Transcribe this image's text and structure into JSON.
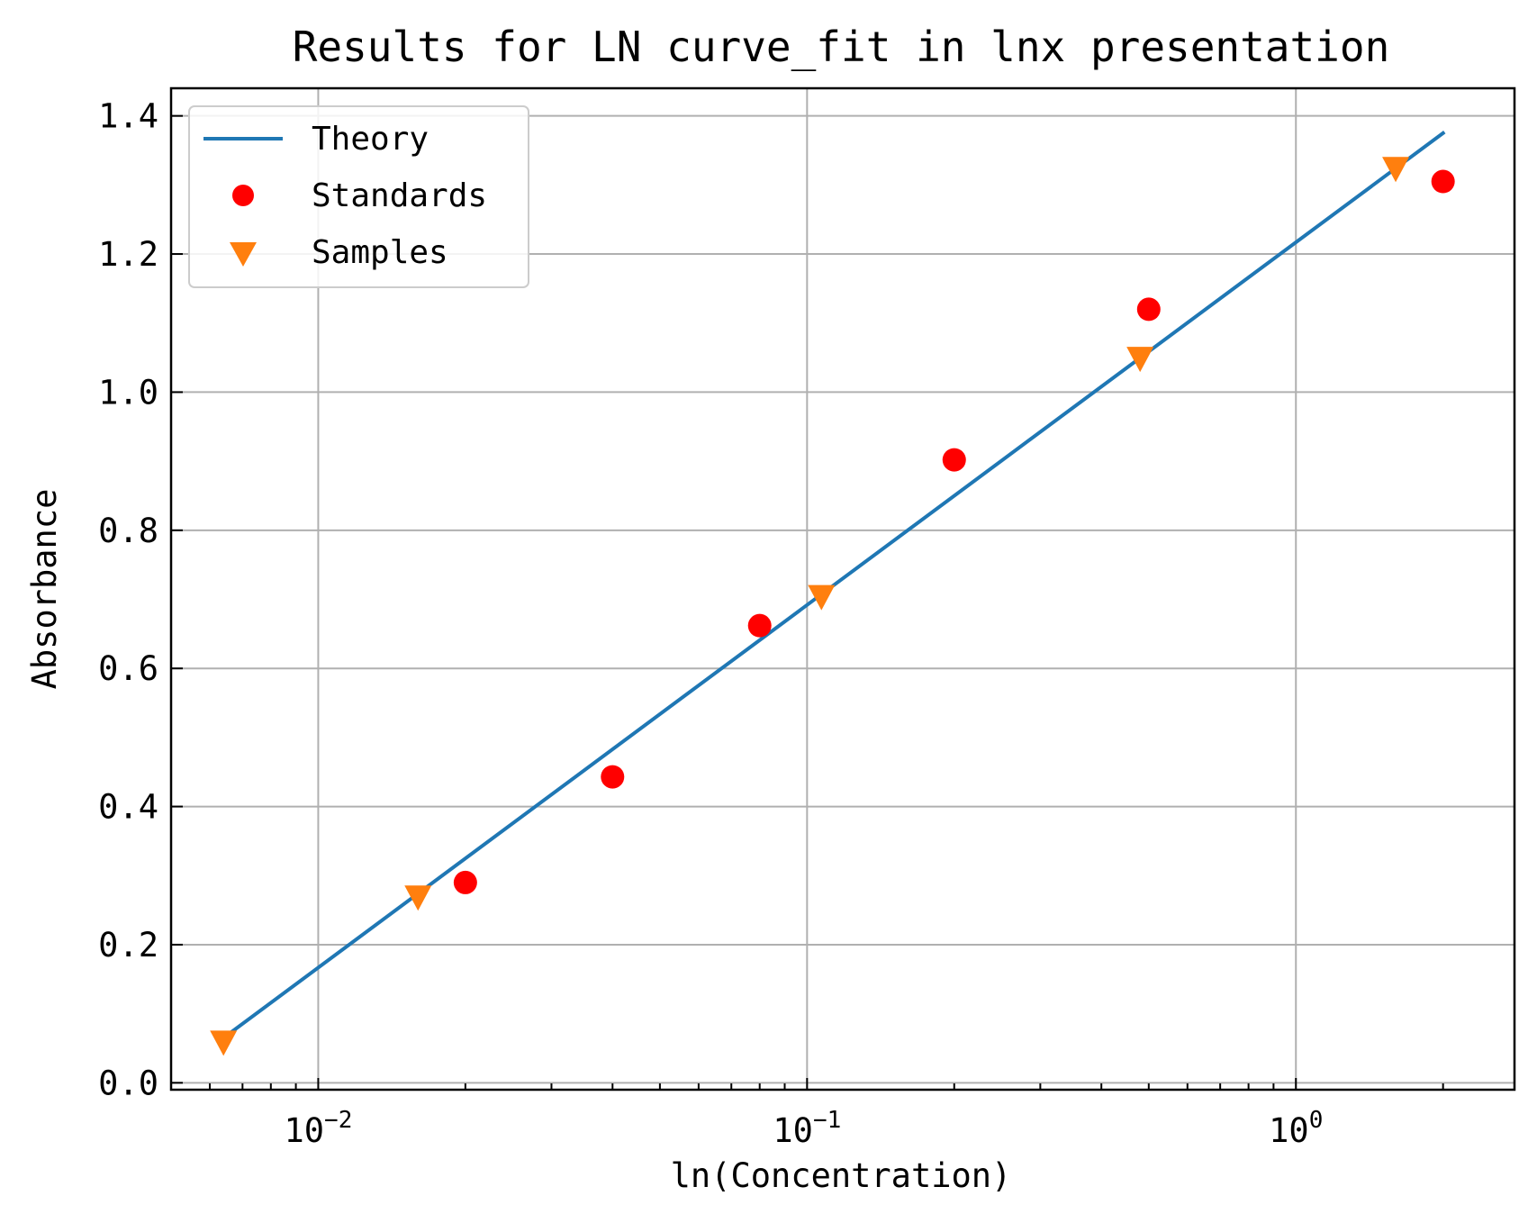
{
  "chart_data": {
    "type": "scatter",
    "title": "Results for LN curve_fit in lnx presentation",
    "xlabel": "ln(Concentration)",
    "ylabel": "Absorbance",
    "xscale": "log",
    "xlim": [
      0.005,
      2.8
    ],
    "ylim": [
      -0.01,
      1.44
    ],
    "x_ticks": [
      {
        "value": 0.01,
        "base": "10",
        "exp": "−2"
      },
      {
        "value": 0.1,
        "base": "10",
        "exp": "−1"
      },
      {
        "value": 1,
        "base": "10",
        "exp": "0"
      }
    ],
    "y_ticks": [
      {
        "value": 0.0,
        "label": "0.0"
      },
      {
        "value": 0.2,
        "label": "0.2"
      },
      {
        "value": 0.4,
        "label": "0.4"
      },
      {
        "value": 0.6,
        "label": "0.6"
      },
      {
        "value": 0.8,
        "label": "0.8"
      },
      {
        "value": 1.0,
        "label": "1.0"
      },
      {
        "value": 1.2,
        "label": "1.2"
      },
      {
        "value": 1.4,
        "label": "1.4"
      }
    ],
    "grid": true,
    "legend_position": "upper-left",
    "series": [
      {
        "name": "Theory",
        "kind": "line",
        "color": "#1f77b4",
        "x": [
          0.0064,
          2.0
        ],
        "y": [
          0.065,
          1.375
        ]
      },
      {
        "name": "Standards",
        "kind": "marker-circle",
        "color": "#ff0000",
        "x": [
          0.02,
          0.04,
          0.08,
          0.2,
          0.5,
          2.0
        ],
        "y": [
          0.29,
          0.443,
          0.662,
          0.902,
          1.12,
          1.305
        ]
      },
      {
        "name": "Samples",
        "kind": "marker-triangle-down",
        "color": "#ff7f0e",
        "x": [
          0.0064,
          0.016,
          0.107,
          0.48,
          1.6
        ],
        "y": [
          0.06,
          0.27,
          0.705,
          1.05,
          1.325
        ]
      }
    ]
  }
}
